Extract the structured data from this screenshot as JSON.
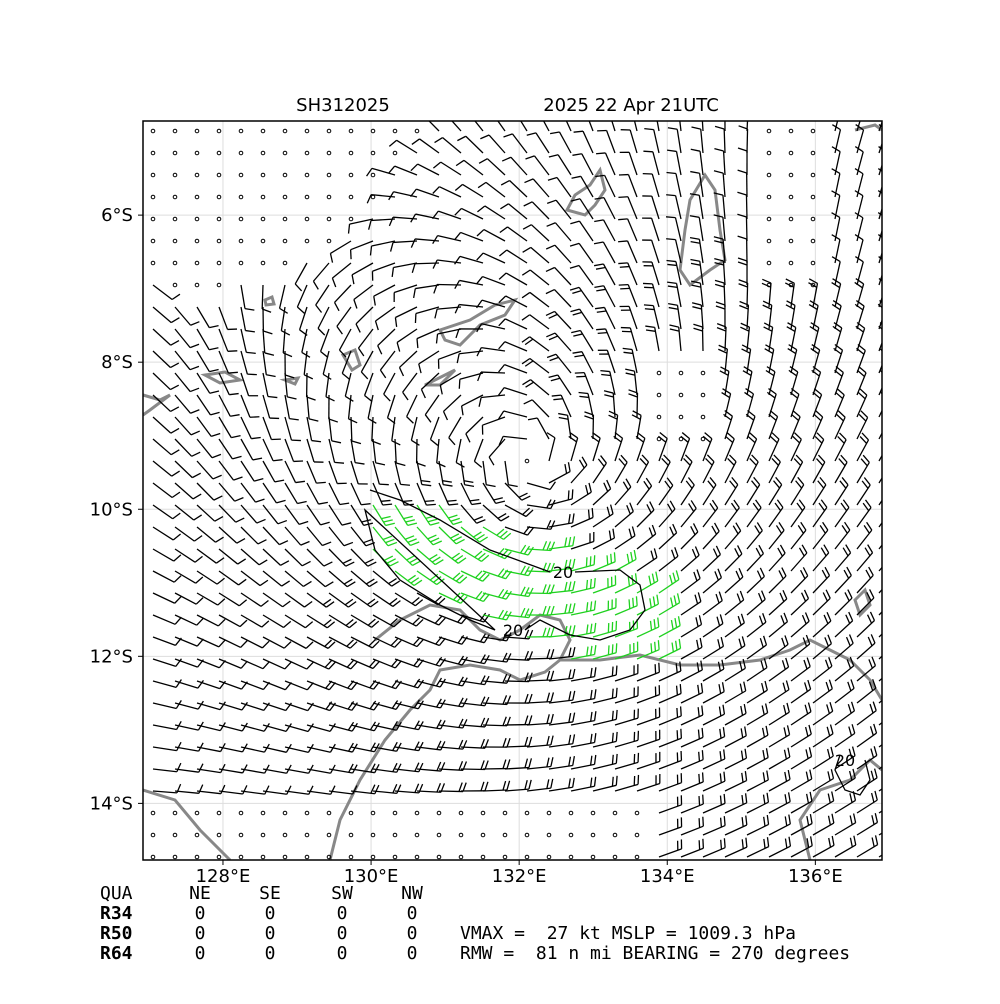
{
  "title_left": "SH312025",
  "title_right": "2025 22 Apr 21UTC",
  "lon_range": [
    126.92,
    136.9
  ],
  "lat_range": [
    -14.77,
    -4.72
  ],
  "lon_ticks": [
    {
      "value": 128,
      "label": "128°E"
    },
    {
      "value": 130,
      "label": "130°E"
    },
    {
      "value": 132,
      "label": "132°E"
    },
    {
      "value": 134,
      "label": "134°E"
    },
    {
      "value": 136,
      "label": "136°E"
    }
  ],
  "lat_ticks": [
    {
      "value": -6,
      "label": "6°S"
    },
    {
      "value": -8,
      "label": "8°S"
    },
    {
      "value": -10,
      "label": "10°S"
    },
    {
      "value": -12,
      "label": "12°S"
    },
    {
      "value": -14,
      "label": "14°S"
    }
  ],
  "contour_labels": [
    "20",
    "20",
    "20"
  ],
  "table": {
    "header": [
      "QUA",
      "NE",
      "SE",
      "SW",
      "NW"
    ],
    "rows": [
      [
        "R34",
        0,
        0,
        0,
        0
      ],
      [
        "R50",
        0,
        0,
        0,
        0
      ],
      [
        "R64",
        0,
        0,
        0,
        0
      ]
    ]
  },
  "info": [
    "VMAX =  27 kt MSLP = 1009.3 hPa",
    "RMW =  81 n mi BEARING = 270 degrees"
  ]
}
